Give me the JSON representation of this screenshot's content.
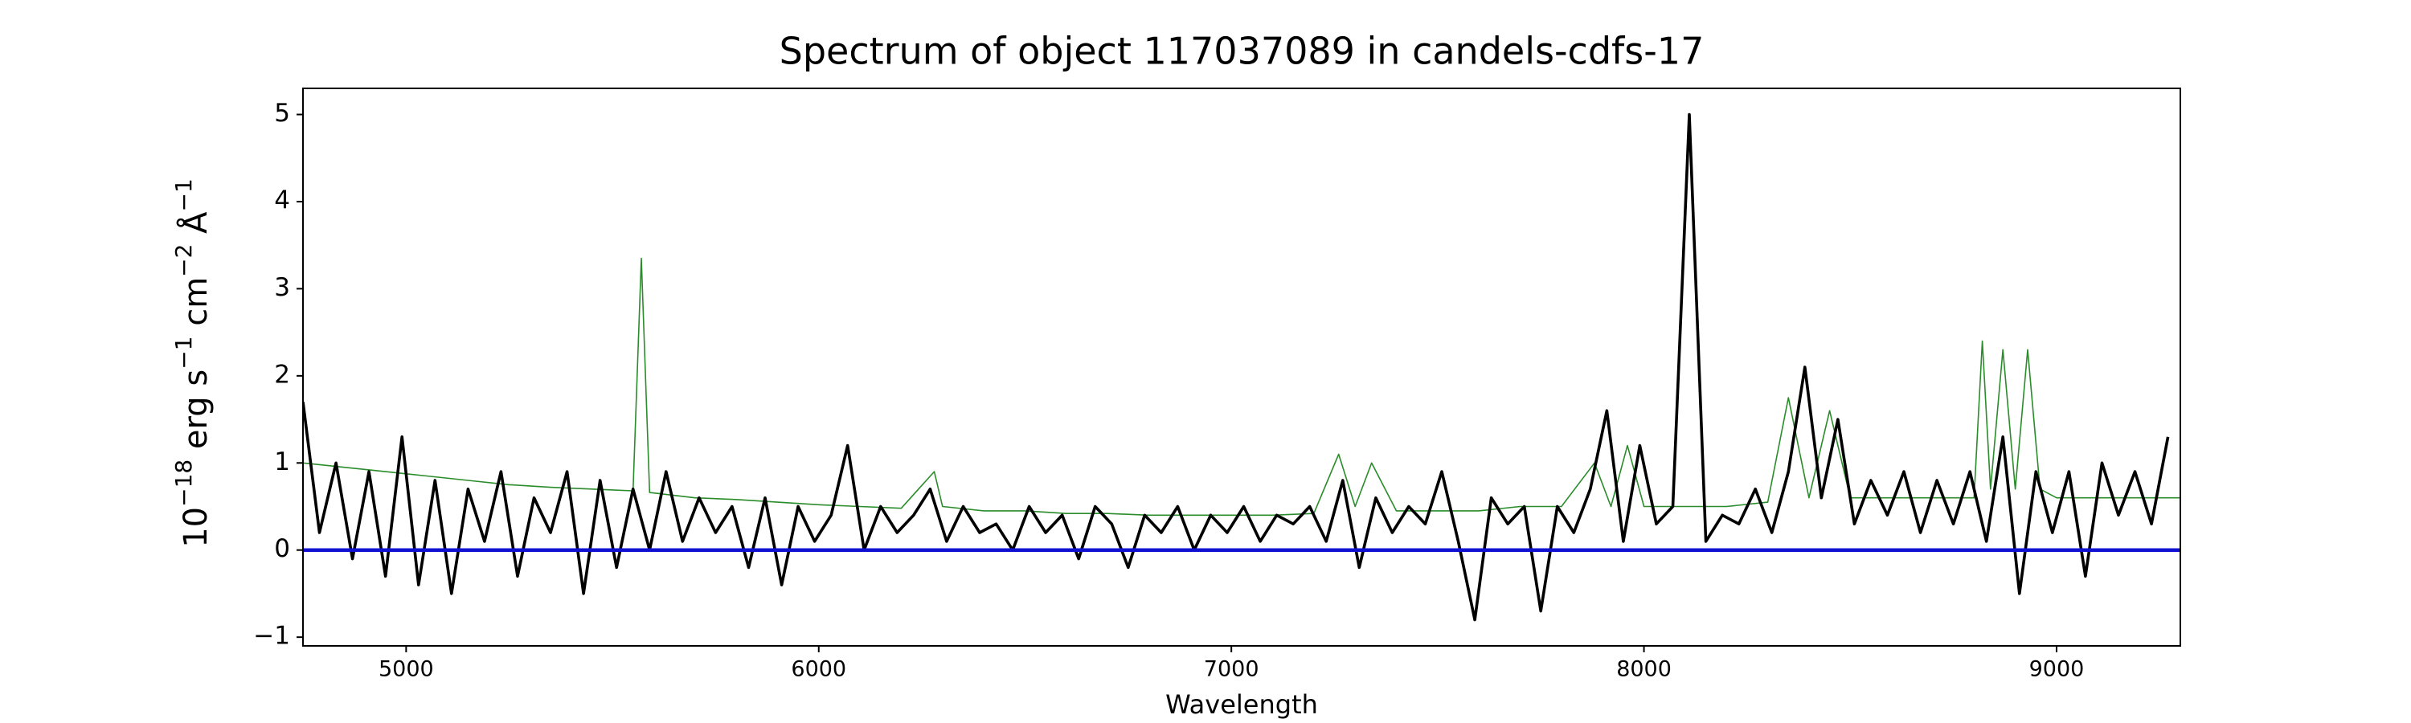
{
  "chart_data": {
    "type": "line",
    "title": "Spectrum of object 117037089 in candels-cdfs-17",
    "xlabel": "Wavelength",
    "ylabel": [
      {
        "text": "10",
        "sup": "−18"
      },
      {
        "text": " erg s",
        "sup": "−1"
      },
      {
        "text": " cm",
        "sup": "−2"
      },
      {
        "text": " Å",
        "sup": "−1"
      }
    ],
    "xlim": [
      4750,
      9300
    ],
    "ylim": [
      -1.1,
      5.3
    ],
    "xticks": [
      5000,
      6000,
      7000,
      8000,
      9000
    ],
    "yticks": [
      {
        "value": -1,
        "label": "−1"
      },
      0,
      1,
      2,
      3,
      4,
      5
    ],
    "grid": false,
    "series": [
      {
        "color": "#2a8c2a",
        "width": 1.6,
        "x": [
          4750,
          4850,
          4950,
          5050,
          5150,
          5250,
          5350,
          5450,
          5550,
          5570,
          5590,
          5700,
          5800,
          5900,
          6000,
          6100,
          6200,
          6280,
          6300,
          6400,
          6500,
          6600,
          6700,
          6800,
          6900,
          7000,
          7100,
          7200,
          7260,
          7300,
          7340,
          7400,
          7500,
          7600,
          7700,
          7800,
          7880,
          7920,
          7960,
          8000,
          8100,
          8200,
          8300,
          8350,
          8400,
          8450,
          8500,
          8600,
          8700,
          8800,
          8820,
          8840,
          8870,
          8900,
          8930,
          8960,
          9000,
          9100,
          9200,
          9300
        ],
        "values": [
          1.0,
          0.95,
          0.9,
          0.85,
          0.8,
          0.75,
          0.72,
          0.7,
          0.68,
          3.35,
          0.66,
          0.6,
          0.58,
          0.55,
          0.52,
          0.5,
          0.48,
          0.9,
          0.5,
          0.45,
          0.45,
          0.42,
          0.42,
          0.4,
          0.4,
          0.4,
          0.4,
          0.42,
          1.1,
          0.5,
          1.0,
          0.45,
          0.45,
          0.45,
          0.5,
          0.5,
          1.0,
          0.5,
          1.2,
          0.5,
          0.5,
          0.5,
          0.55,
          1.75,
          0.6,
          1.6,
          0.6,
          0.6,
          0.6,
          0.6,
          2.4,
          0.7,
          2.3,
          0.7,
          2.3,
          0.7,
          0.6,
          0.6,
          0.6,
          0.6
        ]
      },
      {
        "color": "#000000",
        "width": 3.6,
        "x": [
          4750,
          4790,
          4830,
          4870,
          4910,
          4950,
          4990,
          5030,
          5070,
          5110,
          5150,
          5190,
          5230,
          5270,
          5310,
          5350,
          5390,
          5430,
          5470,
          5510,
          5550,
          5590,
          5630,
          5670,
          5710,
          5750,
          5790,
          5830,
          5870,
          5910,
          5950,
          5990,
          6030,
          6070,
          6110,
          6150,
          6190,
          6230,
          6270,
          6310,
          6350,
          6390,
          6430,
          6470,
          6510,
          6550,
          6590,
          6630,
          6670,
          6710,
          6750,
          6790,
          6830,
          6870,
          6910,
          6950,
          6990,
          7030,
          7070,
          7110,
          7150,
          7190,
          7230,
          7270,
          7310,
          7350,
          7390,
          7430,
          7470,
          7510,
          7550,
          7590,
          7630,
          7670,
          7710,
          7750,
          7790,
          7830,
          7870,
          7910,
          7950,
          7990,
          8030,
          8070,
          8110,
          8150,
          8190,
          8230,
          8270,
          8310,
          8350,
          8390,
          8430,
          8470,
          8510,
          8550,
          8590,
          8630,
          8670,
          8710,
          8750,
          8790,
          8830,
          8870,
          8910,
          8950,
          8990,
          9030,
          9070,
          9110,
          9150,
          9190,
          9230,
          9270
        ],
        "values": [
          1.7,
          0.2,
          1.0,
          -0.1,
          0.9,
          -0.3,
          1.3,
          -0.4,
          0.8,
          -0.5,
          0.7,
          0.1,
          0.9,
          -0.3,
          0.6,
          0.2,
          0.9,
          -0.5,
          0.8,
          -0.2,
          0.7,
          0.0,
          0.9,
          0.1,
          0.6,
          0.2,
          0.5,
          -0.2,
          0.6,
          -0.4,
          0.5,
          0.1,
          0.4,
          1.2,
          0.0,
          0.5,
          0.2,
          0.4,
          0.7,
          0.1,
          0.5,
          0.2,
          0.3,
          0.0,
          0.5,
          0.2,
          0.4,
          -0.1,
          0.5,
          0.3,
          -0.2,
          0.4,
          0.2,
          0.5,
          0.0,
          0.4,
          0.2,
          0.5,
          0.1,
          0.4,
          0.3,
          0.5,
          0.1,
          0.8,
          -0.2,
          0.6,
          0.2,
          0.5,
          0.3,
          0.9,
          0.1,
          -0.8,
          0.6,
          0.3,
          0.5,
          -0.7,
          0.5,
          0.2,
          0.7,
          1.6,
          0.1,
          1.2,
          0.3,
          0.5,
          5.0,
          0.1,
          0.4,
          0.3,
          0.7,
          0.2,
          0.9,
          2.1,
          0.6,
          1.5,
          0.3,
          0.8,
          0.4,
          0.9,
          0.2,
          0.8,
          0.3,
          0.9,
          0.1,
          1.3,
          -0.5,
          0.9,
          0.2,
          0.9,
          -0.3,
          1.0,
          0.4,
          0.9,
          0.3,
          1.3
        ]
      },
      {
        "color": "#1010d0",
        "width": 4.5,
        "x": [
          4750,
          9300
        ],
        "values": [
          0,
          0
        ]
      }
    ]
  }
}
